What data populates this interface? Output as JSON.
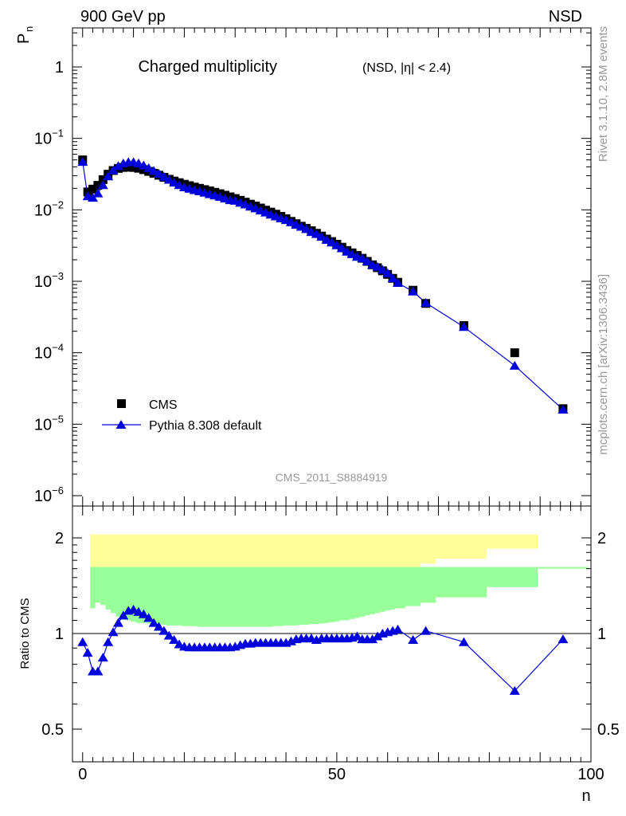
{
  "header": {
    "left": "900 GeV pp",
    "right": "NSD"
  },
  "side": {
    "rivet": "Rivet 3.1.10,  2.8M events",
    "mcplots": "mcplots.cern.ch [arXiv:1306.3436]"
  },
  "chart_data": [
    {
      "type": "scatter",
      "title": "Charged multiplicity",
      "subtitle": "(NSD, |η| < 2.4)",
      "watermark": "CMS_2011_S8884919",
      "ylabel": "P",
      "ylabel_sub": "n",
      "xlim": [
        -2,
        100
      ],
      "ylog": true,
      "ylim": [
        1e-06,
        3
      ],
      "yticks": [
        "1",
        "10−1",
        "10−2",
        "10−3",
        "10−4",
        "10−5",
        "10−6"
      ],
      "legend": {
        "position": "bottom-left",
        "entries": [
          "CMS",
          "Pythia 8.308 default"
        ]
      },
      "colors": {
        "data": "#000000",
        "mc": "#0000dd"
      },
      "series": [
        {
          "name": "CMS",
          "x": [
            0,
            1,
            2,
            3,
            4,
            5,
            6,
            7,
            8,
            9,
            10,
            11,
            12,
            13,
            14,
            15,
            16,
            17,
            18,
            19,
            20,
            21,
            22,
            23,
            24,
            25,
            26,
            27,
            28,
            29,
            30,
            31,
            32,
            33,
            34,
            35,
            36,
            37,
            38,
            39,
            40,
            41,
            42,
            43,
            44,
            45,
            46,
            47,
            48,
            49,
            50,
            51,
            52,
            53,
            54,
            55,
            56,
            57,
            58,
            59,
            60,
            61,
            62,
            65,
            67.5,
            75,
            85,
            94.5
          ],
          "y": [
            0.05,
            0.0178,
            0.0195,
            0.022,
            0.0265,
            0.0315,
            0.0355,
            0.038,
            0.0392,
            0.0396,
            0.0392,
            0.0382,
            0.0365,
            0.0345,
            0.0325,
            0.0305,
            0.0285,
            0.0268,
            0.0253,
            0.024,
            0.0228,
            0.0218,
            0.0208,
            0.02,
            0.0192,
            0.0184,
            0.0176,
            0.0168,
            0.016,
            0.0152,
            0.0144,
            0.0136,
            0.0128,
            0.012,
            0.0113,
            0.0106,
            0.0099,
            0.0093,
            0.0087,
            0.0081,
            0.0075,
            0.0069,
            0.0064,
            0.0059,
            0.0055,
            0.0051,
            0.0047,
            0.0043,
            0.0039,
            0.0036,
            0.0033,
            0.003,
            0.0027,
            0.0025,
            0.0023,
            0.0021,
            0.0019,
            0.0017,
            0.00155,
            0.0014,
            0.00125,
            0.0011,
            0.00097,
            0.00075,
            0.00049,
            0.00024,
            0.0001,
            1.65e-05
          ]
        },
        {
          "name": "Pythia 8.308 default",
          "x": [
            0,
            1,
            2,
            3,
            4,
            5,
            6,
            7,
            8,
            9,
            10,
            11,
            12,
            13,
            14,
            15,
            16,
            17,
            18,
            19,
            20,
            21,
            22,
            23,
            24,
            25,
            26,
            27,
            28,
            29,
            30,
            31,
            32,
            33,
            34,
            35,
            36,
            37,
            38,
            39,
            40,
            41,
            42,
            43,
            44,
            45,
            46,
            47,
            48,
            49,
            50,
            51,
            52,
            53,
            54,
            55,
            56,
            57,
            58,
            59,
            60,
            61,
            62,
            65,
            67.5,
            75,
            85,
            94.5
          ],
          "y": [
            0.047,
            0.0155,
            0.0148,
            0.017,
            0.0222,
            0.0295,
            0.0357,
            0.041,
            0.0447,
            0.0466,
            0.0466,
            0.0448,
            0.042,
            0.0385,
            0.0352,
            0.032,
            0.0291,
            0.0264,
            0.0241,
            0.0222,
            0.0207,
            0.0198,
            0.0189,
            0.0182,
            0.0174,
            0.0166,
            0.0159,
            0.0152,
            0.0144,
            0.0137,
            0.0134,
            0.0126,
            0.0119,
            0.0111,
            0.0105,
            0.0098,
            0.0092,
            0.0086,
            0.0081,
            0.0076,
            0.0072,
            0.0067,
            0.0062,
            0.0058,
            0.0054,
            0.0049,
            0.0046,
            0.0042,
            0.0038,
            0.0035,
            0.0032,
            0.0029,
            0.0026,
            0.0024,
            0.0022,
            0.0021,
            0.0019,
            0.0017,
            0.0016,
            0.00145,
            0.0013,
            0.0011,
            0.00095,
            0.00072,
            0.0005,
            0.00023,
            6.6e-05,
            1.6e-05
          ]
        }
      ]
    },
    {
      "type": "scatter",
      "ylabel": "Ratio to CMS",
      "xlabel": "n",
      "xlim": [
        -2,
        100
      ],
      "ylog": true,
      "ylim": [
        0.43,
        2.3
      ],
      "yticks_left": [
        "2",
        "1",
        "0.5"
      ],
      "yticks_right": [
        "2",
        "1",
        "0.5"
      ],
      "xticks": [
        "0",
        "50",
        "100"
      ],
      "colors": {
        "inner_band": "#99ff99",
        "outer_band": "#ffff99",
        "reference": "#000000",
        "mc": "#0000dd"
      },
      "bands": {
        "edges": [
          -0.5,
          0.5,
          1.5,
          2.5,
          3.5,
          4.5,
          5.5,
          6.5,
          7.5,
          8.5,
          9.5,
          10.5,
          11.5,
          12.5,
          13.5,
          14.5,
          15.5,
          16.5,
          17.5,
          18.5,
          19.5,
          20.5,
          21.5,
          22.5,
          23.5,
          24.5,
          25.5,
          26.5,
          27.5,
          28.5,
          29.5,
          30.5,
          31.5,
          32.5,
          33.5,
          34.5,
          35.5,
          36.5,
          37.5,
          38.5,
          39.5,
          40.5,
          41.5,
          42.5,
          43.5,
          44.5,
          45.5,
          46.5,
          47.5,
          48.5,
          49.5,
          50.5,
          51.5,
          52.5,
          53.5,
          54.5,
          55.5,
          56.5,
          57.5,
          58.5,
          59.5,
          60.5,
          61.5,
          63.5,
          66.5,
          69.5,
          79.5,
          89.5,
          99.5
        ],
        "inner_lo": [
          0.3,
          0.3,
          0.8,
          0.76,
          0.78,
          0.82,
          0.85,
          0.88,
          0.9,
          0.91,
          0.92,
          0.93,
          0.93,
          0.93,
          0.935,
          0.94,
          0.94,
          0.945,
          0.945,
          0.95,
          0.95,
          0.95,
          0.95,
          0.95,
          0.95,
          0.95,
          0.95,
          0.95,
          0.95,
          0.95,
          0.95,
          0.95,
          0.95,
          0.95,
          0.95,
          0.95,
          0.95,
          0.95,
          0.95,
          0.945,
          0.945,
          0.94,
          0.94,
          0.935,
          0.935,
          0.93,
          0.93,
          0.925,
          0.92,
          0.91,
          0.91,
          0.9,
          0.89,
          0.88,
          0.87,
          0.86,
          0.85,
          0.84,
          0.83,
          0.82,
          0.81,
          0.8,
          0.78,
          0.75,
          0.72,
          0.68,
          0.55,
          0.42,
          0.42
        ],
        "inner_hi": [
          1.62,
          1.62,
          1.2,
          1.25,
          1.23,
          1.19,
          1.16,
          1.13,
          1.12,
          1.1,
          1.09,
          1.08,
          1.08,
          1.075,
          1.07,
          1.07,
          1.065,
          1.06,
          1.06,
          1.06,
          1.055,
          1.055,
          1.055,
          1.05,
          1.05,
          1.05,
          1.05,
          1.05,
          1.05,
          1.05,
          1.05,
          1.05,
          1.05,
          1.05,
          1.05,
          1.05,
          1.05,
          1.05,
          1.055,
          1.055,
          1.06,
          1.06,
          1.06,
          1.065,
          1.065,
          1.07,
          1.07,
          1.075,
          1.08,
          1.085,
          1.09,
          1.1,
          1.1,
          1.11,
          1.12,
          1.13,
          1.14,
          1.15,
          1.16,
          1.17,
          1.18,
          1.19,
          1.2,
          1.22,
          1.25,
          1.3,
          1.4,
          1.6,
          1.62
        ],
        "outer_lo": [
          0.25,
          0.25,
          0.65,
          0.6,
          0.65,
          0.72,
          0.78,
          0.8,
          0.82,
          0.84,
          0.86,
          0.87,
          0.87,
          0.875,
          0.88,
          0.88,
          0.885,
          0.89,
          0.89,
          0.89,
          0.89,
          0.89,
          0.885,
          0.885,
          0.885,
          0.885,
          0.885,
          0.88,
          0.88,
          0.88,
          0.88,
          0.88,
          0.88,
          0.875,
          0.875,
          0.87,
          0.87,
          0.87,
          0.865,
          0.86,
          0.855,
          0.85,
          0.85,
          0.84,
          0.83,
          0.82,
          0.81,
          0.8,
          0.79,
          0.78,
          0.77,
          0.76,
          0.75,
          0.73,
          0.72,
          0.7,
          0.68,
          0.66,
          0.64,
          0.62,
          0.6,
          0.58,
          0.55,
          0.5,
          0.45,
          0.4,
          0.35,
          0.35,
          0.35
        ],
        "outer_hi": [
          2.05,
          2.05,
          1.4,
          1.45,
          1.38,
          1.3,
          1.25,
          1.22,
          1.2,
          1.18,
          1.17,
          1.16,
          1.15,
          1.15,
          1.14,
          1.14,
          1.13,
          1.13,
          1.13,
          1.12,
          1.12,
          1.12,
          1.12,
          1.12,
          1.12,
          1.12,
          1.12,
          1.12,
          1.12,
          1.12,
          1.12,
          1.12,
          1.12,
          1.125,
          1.125,
          1.13,
          1.13,
          1.13,
          1.14,
          1.14,
          1.15,
          1.15,
          1.16,
          1.17,
          1.18,
          1.19,
          1.2,
          1.21,
          1.22,
          1.23,
          1.25,
          1.27,
          1.29,
          1.31,
          1.33,
          1.35,
          1.38,
          1.41,
          1.44,
          1.47,
          1.5,
          1.53,
          1.56,
          1.6,
          1.66,
          1.72,
          1.85,
          2.05,
          2.05
        ]
      },
      "series": [
        {
          "name": "Pythia 8.308 default",
          "x": [
            0,
            1,
            2,
            3,
            4,
            5,
            6,
            7,
            8,
            9,
            10,
            11,
            12,
            13,
            14,
            15,
            16,
            17,
            18,
            19,
            20,
            21,
            22,
            23,
            24,
            25,
            26,
            27,
            28,
            29,
            30,
            31,
            32,
            33,
            34,
            35,
            36,
            37,
            38,
            39,
            40,
            41,
            42,
            43,
            44,
            45,
            46,
            47,
            48,
            49,
            50,
            51,
            52,
            53,
            54,
            55,
            56,
            57,
            58,
            59,
            60,
            61,
            62,
            65,
            67.5,
            75,
            85,
            94.5
          ],
          "y": [
            0.94,
            0.87,
            0.76,
            0.76,
            0.84,
            0.94,
            1.01,
            1.08,
            1.14,
            1.18,
            1.19,
            1.17,
            1.15,
            1.12,
            1.08,
            1.05,
            1.02,
            0.985,
            0.955,
            0.925,
            0.91,
            0.905,
            0.905,
            0.905,
            0.905,
            0.905,
            0.905,
            0.905,
            0.905,
            0.905,
            0.91,
            0.92,
            0.93,
            0.93,
            0.935,
            0.935,
            0.935,
            0.935,
            0.935,
            0.935,
            0.935,
            0.945,
            0.96,
            0.965,
            0.965,
            0.965,
            0.955,
            0.965,
            0.965,
            0.965,
            0.965,
            0.965,
            0.965,
            0.97,
            0.98,
            0.96,
            0.96,
            0.96,
            0.98,
            1.0,
            1.01,
            1.02,
            1.03,
            0.955,
            1.02,
            0.94,
            0.66,
            0.96
          ]
        }
      ]
    }
  ]
}
